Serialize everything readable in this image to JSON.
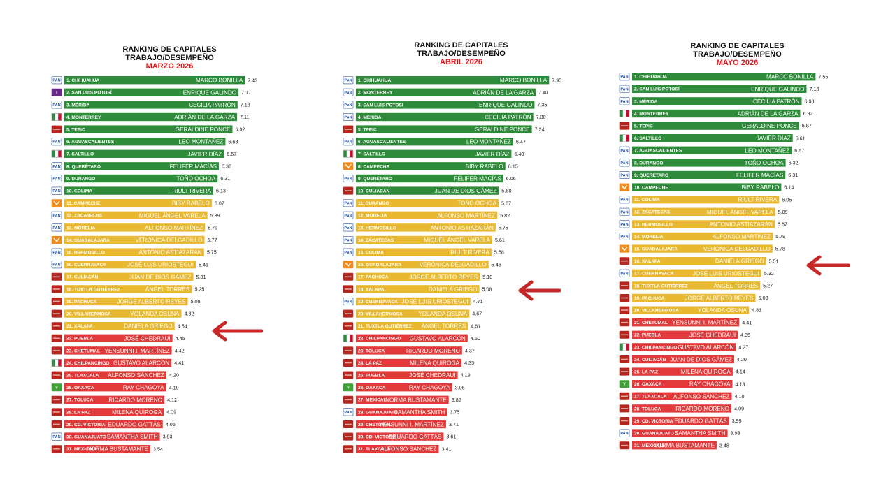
{
  "colors": {
    "green": "#2e8b3a",
    "yellow": "#e8b930",
    "red": "#e23a3a",
    "title_red": "#e3131b",
    "arrow": "#c62828",
    "pan_blue": "#1f4e9c",
    "morena": "#b5261e",
    "pri": "#2a8c3f",
    "mc": "#f08a1c",
    "pvem": "#41a037",
    "indep": "#6a2a8a"
  },
  "chart_data": [
    {
      "type": "bar",
      "title_line1": "RANKING DE CAPITALES",
      "title_line2": "TRABAJO/DESEMPEÑO",
      "subtitle": "MARZO 2026",
      "highlight_rank": 21,
      "entries": [
        {
          "label": "1. CHIHUAHUA",
          "mayor": "MARCO BONILLA",
          "value": 7.43,
          "party": "PAN",
          "color": "green"
        },
        {
          "label": "2. SAN LUIS POTOSÍ",
          "mayor": "ENRIQUE GALINDO",
          "value": 7.17,
          "party": "I",
          "color": "green"
        },
        {
          "label": "3. MÉRIDA",
          "mayor": "CECILIA PATRÓN",
          "value": 7.13,
          "party": "PAN",
          "color": "green"
        },
        {
          "label": "4. MONTERREY",
          "mayor": "ADRIÁN DE LA GARZA",
          "value": 7.11,
          "party": "PRI",
          "color": "green"
        },
        {
          "label": "5. TEPIC",
          "mayor": "GERALDINE PONCE",
          "value": 6.92,
          "party": "MORENA",
          "color": "green"
        },
        {
          "label": "6. AGUASCALIENTES",
          "mayor": "LEO MONTAÑEZ",
          "value": 6.63,
          "party": "PAN",
          "color": "green"
        },
        {
          "label": "7. SALTILLO",
          "mayor": "JAVIER DÍAZ",
          "value": 6.57,
          "party": "PRI",
          "color": "green"
        },
        {
          "label": "8. QUERÉTARO",
          "mayor": "FELIFER MACÍAS",
          "value": 6.36,
          "party": "PAN",
          "color": "green"
        },
        {
          "label": "9. DURANGO",
          "mayor": "TOÑO OCHOA",
          "value": 6.31,
          "party": "PAN",
          "color": "green"
        },
        {
          "label": "10. COLIMA",
          "mayor": "RIULT RIVERA",
          "value": 6.13,
          "party": "PAN",
          "color": "green"
        },
        {
          "label": "11. CAMPECHE",
          "mayor": "BIBY RABELO",
          "value": 6.07,
          "party": "MC",
          "color": "yellow"
        },
        {
          "label": "12. ZACATECAS",
          "mayor": "MIGUEL ÁNGEL VARELA",
          "value": 5.89,
          "party": "PAN",
          "color": "yellow"
        },
        {
          "label": "13. MORELIA",
          "mayor": "ALFONSO MARTÍNEZ",
          "value": 5.79,
          "party": "PAN",
          "color": "yellow"
        },
        {
          "label": "14. GUADALAJARA",
          "mayor": "VERÓNICA DELGADILLO",
          "value": 5.77,
          "party": "MC",
          "color": "yellow"
        },
        {
          "label": "15. HERMOSILLO",
          "mayor": "ANTONIO ASTIAZARÁN",
          "value": 5.75,
          "party": "PAN",
          "color": "yellow"
        },
        {
          "label": "16. CUERNAVACA",
          "mayor": "JOSÉ LUIS URIOSTEGUI",
          "value": 5.41,
          "party": "PAN",
          "color": "yellow"
        },
        {
          "label": "17. CULIACÁN",
          "mayor": "JUAN DE DIOS GÁMEZ",
          "value": 5.31,
          "party": "MORENA",
          "color": "yellow"
        },
        {
          "label": "18. TUXTLA GUTIÉRREZ",
          "mayor": "ÁNGEL TORRES",
          "value": 5.25,
          "party": "MORENA",
          "color": "yellow"
        },
        {
          "label": "19. PACHUCA",
          "mayor": "JORGE ALBERTO REYES",
          "value": 5.08,
          "party": "MORENA",
          "color": "yellow"
        },
        {
          "label": "20. VILLAHERMOSA",
          "mayor": "YOLANDA OSUNA",
          "value": 4.82,
          "party": "MORENA",
          "color": "yellow"
        },
        {
          "label": "21. XALAPA",
          "mayor": "DANIELA GRIEGO",
          "value": 4.54,
          "party": "MORENA",
          "color": "yellow"
        },
        {
          "label": "22. PUEBLA",
          "mayor": "JOSÉ CHEDRAUI",
          "value": 4.45,
          "party": "MORENA",
          "color": "red"
        },
        {
          "label": "23. CHETUMAL",
          "mayor": "YENSUNNI I. MARTÍNEZ",
          "value": 4.42,
          "party": "MORENA",
          "color": "red"
        },
        {
          "label": "24. CHILPANCINGO",
          "mayor": "GUSTAVO ALARCÓN",
          "value": 4.41,
          "party": "PRI",
          "color": "red"
        },
        {
          "label": "25. TLAXCALA",
          "mayor": "ALFONSO SÁNCHEZ",
          "value": 4.2,
          "party": "MORENA",
          "color": "red"
        },
        {
          "label": "26. OAXACA",
          "mayor": "RAY CHAGOYA",
          "value": 4.19,
          "party": "PVEM",
          "color": "red"
        },
        {
          "label": "27. TOLUCA",
          "mayor": "RICARDO MORENO",
          "value": 4.12,
          "party": "MORENA",
          "color": "red"
        },
        {
          "label": "28. LA PAZ",
          "mayor": "MILENA QUIROGA",
          "value": 4.09,
          "party": "MORENA",
          "color": "red"
        },
        {
          "label": "29. CD. VICTORIA",
          "mayor": "EDUARDO GATTÁS",
          "value": 4.05,
          "party": "MORENA",
          "color": "red"
        },
        {
          "label": "30. GUANAJUATO",
          "mayor": "SAMANTHA SMITH",
          "value": 3.93,
          "party": "PAN",
          "color": "red"
        },
        {
          "label": "31. MEXICALI",
          "mayor": "NORMA BUSTAMANTE",
          "value": 3.54,
          "party": "MORENA",
          "color": "red"
        }
      ]
    },
    {
      "type": "bar",
      "title_line1": "RANKING DE CAPITALES",
      "title_line2": "TRABAJO/DESEMPEÑO",
      "subtitle": "ABRIL 2026",
      "highlight_rank": 18,
      "entries": [
        {
          "label": "1. CHIHUAHUA",
          "mayor": "MARCO BONILLA",
          "value": 7.95,
          "party": "PAN",
          "color": "green"
        },
        {
          "label": "2. MONTERREY",
          "mayor": "ADRIÁN DE LA GARZA",
          "value": 7.4,
          "party": "PAN",
          "color": "green"
        },
        {
          "label": "3. SAN LUIS POTOSÍ",
          "mayor": "ENRIQUE GALINDO",
          "value": 7.35,
          "party": "PAN",
          "color": "green"
        },
        {
          "label": "4. MÉRIDA",
          "mayor": "CECILIA PATRÓN",
          "value": 7.3,
          "party": "PAN",
          "color": "green"
        },
        {
          "label": "5. TEPIC",
          "mayor": "GERALDINE PONCE",
          "value": 7.24,
          "party": "MORENA",
          "color": "green"
        },
        {
          "label": "6. AGUASCALIENTES",
          "mayor": "LEO MONTAÑEZ",
          "value": 6.47,
          "party": "PAN",
          "color": "green"
        },
        {
          "label": "7. SALTILLO",
          "mayor": "JAVIER DÍAZ",
          "value": 6.4,
          "party": "PRI",
          "color": "green"
        },
        {
          "label": "8. CAMPECHE",
          "mayor": "BIBY RABELO",
          "value": 6.15,
          "party": "MC",
          "color": "green"
        },
        {
          "label": "9. QUERÉTARO",
          "mayor": "FELIFER MACÍAS",
          "value": 6.06,
          "party": "PAN",
          "color": "green"
        },
        {
          "label": "10. CULIACÁN",
          "mayor": "JUAN DE DIOS GÁMEZ",
          "value": 5.88,
          "party": "MORENA",
          "color": "green"
        },
        {
          "label": "11. DURANGO",
          "mayor": "TOÑO OCHOA",
          "value": 5.87,
          "party": "PAN",
          "color": "yellow"
        },
        {
          "label": "12. MORELIA",
          "mayor": "ALFONSO MARTÍNEZ",
          "value": 5.82,
          "party": "PAN",
          "color": "yellow"
        },
        {
          "label": "13. HERMOSILLO",
          "mayor": "ANTONIO ASTIAZARÁN",
          "value": 5.75,
          "party": "PAN",
          "color": "yellow"
        },
        {
          "label": "14. ZACATECAS",
          "mayor": "MIGUEL ÁNGEL VARELA",
          "value": 5.61,
          "party": "PAN",
          "color": "yellow"
        },
        {
          "label": "15. COLIMA",
          "mayor": "RIULT RIVERA",
          "value": 5.58,
          "party": "PAN",
          "color": "yellow"
        },
        {
          "label": "16. GUADALAJARA",
          "mayor": "VERÓNICA DELGADILLO",
          "value": 5.46,
          "party": "MC",
          "color": "yellow"
        },
        {
          "label": "17. PACHUCA",
          "mayor": "JORGE ALBERTO REYES",
          "value": 5.1,
          "party": "MORENA",
          "color": "yellow"
        },
        {
          "label": "18. XALAPA",
          "mayor": "DANIELA GRIEGO",
          "value": 5.08,
          "party": "MORENA",
          "color": "yellow"
        },
        {
          "label": "19. CUERNAVACA",
          "mayor": "JOSÉ LUIS URIOSTEGUI",
          "value": 4.71,
          "party": "PAN",
          "color": "yellow"
        },
        {
          "label": "20. VILLAHERMOSA",
          "mayor": "YOLANDA OSUNA",
          "value": 4.67,
          "party": "MORENA",
          "color": "yellow"
        },
        {
          "label": "21. TUXTLA GUTIÉRREZ",
          "mayor": "ÁNGEL TORRES",
          "value": 4.61,
          "party": "MORENA",
          "color": "yellow"
        },
        {
          "label": "22. CHILPANCINGO",
          "mayor": "GUSTAVO ALARCÓN",
          "value": 4.6,
          "party": "PRI",
          "color": "red"
        },
        {
          "label": "23. TOLUCA",
          "mayor": "RICARDO MORENO",
          "value": 4.37,
          "party": "MORENA",
          "color": "red"
        },
        {
          "label": "24. LA PAZ",
          "mayor": "MILENA QUIROGA",
          "value": 4.35,
          "party": "MORENA",
          "color": "red"
        },
        {
          "label": "25. PUEBLA",
          "mayor": "JOSÉ CHEDRAUI",
          "value": 4.19,
          "party": "MORENA",
          "color": "red"
        },
        {
          "label": "26. OAXACA",
          "mayor": "RAY CHAGOYA",
          "value": 3.96,
          "party": "PVEM",
          "color": "red"
        },
        {
          "label": "27. MEXICALI",
          "mayor": "NORMA BUSTAMANTE",
          "value": 3.82,
          "party": "MORENA",
          "color": "red"
        },
        {
          "label": "28. GUANAJUATO",
          "mayor": "SAMANTHA SMITH",
          "value": 3.75,
          "party": "PAN",
          "color": "red"
        },
        {
          "label": "29. CHETUMAL",
          "mayor": "YENSUNNI I. MARTÍNEZ",
          "value": 3.71,
          "party": "MORENA",
          "color": "red"
        },
        {
          "label": "30. CD. VICTORIA",
          "mayor": "EDUARDO GATTÁS",
          "value": 3.61,
          "party": "MORENA",
          "color": "red"
        },
        {
          "label": "31. TLAXCALA",
          "mayor": "ALFONSO SÁNCHEZ",
          "value": 3.41,
          "party": "MORENA",
          "color": "red"
        }
      ]
    },
    {
      "type": "bar",
      "title_line1": "RANKING DE CAPITALES",
      "title_line2": "TRABAJO/DESEMPEÑO",
      "subtitle": "MAYO 2026",
      "highlight_rank": 16,
      "entries": [
        {
          "label": "1. CHIHUAHUA",
          "mayor": "MARCO BONILLA",
          "value": 7.55,
          "party": "PAN",
          "color": "green"
        },
        {
          "label": "2. SAN LUIS POTOSÍ",
          "mayor": "ENRIQUE GALINDO",
          "value": 7.18,
          "party": "PAN",
          "color": "green"
        },
        {
          "label": "3. MÉRIDA",
          "mayor": "CECILIA PATRÓN",
          "value": 6.98,
          "party": "PAN",
          "color": "green"
        },
        {
          "label": "4. MONTERREY",
          "mayor": "ADRIÁN DE LA GARZA",
          "value": 6.92,
          "party": "PRI",
          "color": "green"
        },
        {
          "label": "5. TEPIC",
          "mayor": "GERALDINE PONCE",
          "value": 6.87,
          "party": "MORENA",
          "color": "green"
        },
        {
          "label": "6. SALTILLO",
          "mayor": "JAVIER DÍAZ",
          "value": 6.61,
          "party": "PRI",
          "color": "green"
        },
        {
          "label": "7. AGUASCALIENTES",
          "mayor": "LEO MONTAÑEZ",
          "value": 6.57,
          "party": "PAN",
          "color": "green"
        },
        {
          "label": "8. DURANGO",
          "mayor": "TOÑO OCHOA",
          "value": 6.32,
          "party": "PAN",
          "color": "green"
        },
        {
          "label": "9. QUERÉTARO",
          "mayor": "FELIFER MACÍAS",
          "value": 6.31,
          "party": "PAN",
          "color": "green"
        },
        {
          "label": "10. CAMPECHE",
          "mayor": "BIBY RABELO",
          "value": 6.14,
          "party": "MC",
          "color": "green"
        },
        {
          "label": "11. COLIMA",
          "mayor": "RIULT RIVERA",
          "value": 6.05,
          "party": "PAN",
          "color": "yellow"
        },
        {
          "label": "12. ZACATECAS",
          "mayor": "MIGUEL ÁNGEL VARELA",
          "value": 5.89,
          "party": "PAN",
          "color": "yellow"
        },
        {
          "label": "13. HERMOSILLO",
          "mayor": "ANTONIO ASTIAZARÁN",
          "value": 5.87,
          "party": "PAN",
          "color": "yellow"
        },
        {
          "label": "14. MORELIA",
          "mayor": "ALFONSO MARTÍNEZ",
          "value": 5.79,
          "party": "PAN",
          "color": "yellow"
        },
        {
          "label": "15. GUADALAJARA",
          "mayor": "VERÓNICA DELGADILLO",
          "value": 5.78,
          "party": "MC",
          "color": "yellow"
        },
        {
          "label": "16. XALAPA",
          "mayor": "DANIELA GRIEGO",
          "value": 5.51,
          "party": "MORENA",
          "color": "yellow"
        },
        {
          "label": "17. CUERNAVACA",
          "mayor": "JOSÉ LUIS URIOSTEGUI",
          "value": 5.32,
          "party": "PAN",
          "color": "yellow"
        },
        {
          "label": "18. TUXTLA GUTIÉRREZ",
          "mayor": "ÁNGEL TORRES",
          "value": 5.27,
          "party": "MORENA",
          "color": "yellow"
        },
        {
          "label": "19. PACHUCA",
          "mayor": "JORGE ALBERTO REYES",
          "value": 5.08,
          "party": "MORENA",
          "color": "yellow"
        },
        {
          "label": "20. VILLAHERMOSA",
          "mayor": "YOLANDA OSUNA",
          "value": 4.81,
          "party": "MORENA",
          "color": "yellow"
        },
        {
          "label": "21. CHETUMAL",
          "mayor": "YENSUNNI I. MARTÍNEZ",
          "value": 4.41,
          "party": "MORENA",
          "color": "red"
        },
        {
          "label": "22. PUEBLA",
          "mayor": "JOSÉ CHEDRAUI",
          "value": 4.35,
          "party": "MORENA",
          "color": "red"
        },
        {
          "label": "23. CHILPANCINGO",
          "mayor": "GUSTAVO ALARCÓN",
          "value": 4.27,
          "party": "PRI",
          "color": "red"
        },
        {
          "label": "24. CULIACÁN",
          "mayor": "JUAN DE DIOS GÁMEZ",
          "value": 4.2,
          "party": "MORENA",
          "color": "red"
        },
        {
          "label": "25. LA PAZ",
          "mayor": "MILENA QUIROGA",
          "value": 4.14,
          "party": "MORENA",
          "color": "red"
        },
        {
          "label": "26. OAXACA",
          "mayor": "RAY CHAGOYA",
          "value": 4.13,
          "party": "PVEM",
          "color": "red"
        },
        {
          "label": "27. TLAXCALA",
          "mayor": "ALFONSO SÁNCHEZ",
          "value": 4.1,
          "party": "MORENA",
          "color": "red"
        },
        {
          "label": "28. TOLUCA",
          "mayor": "RICARDO MORENO",
          "value": 4.09,
          "party": "MORENA",
          "color": "red"
        },
        {
          "label": "29. CD. VICTORIA",
          "mayor": "EDUARDO GATTÁS",
          "value": 3.99,
          "party": "MORENA",
          "color": "red"
        },
        {
          "label": "30. GUANAJUATO",
          "mayor": "SAMANTHA SMITH",
          "value": 3.93,
          "party": "PAN",
          "color": "red"
        },
        {
          "label": "31. MEXICALI",
          "mayor": "NORMA BUSTAMANTE",
          "value": 3.48,
          "party": "MORENA",
          "color": "red"
        }
      ]
    }
  ]
}
